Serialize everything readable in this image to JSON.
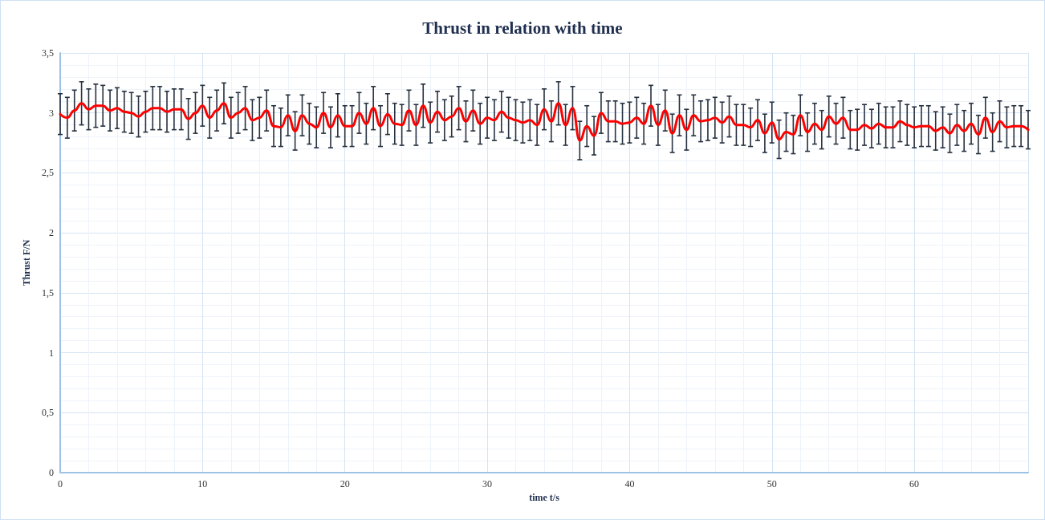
{
  "chart_data": {
    "type": "line",
    "title": "Thrust in relation with time",
    "xlabel": "time t/s",
    "ylabel": "Thrust F/N",
    "x": [
      0,
      0.5,
      1,
      1.5,
      2,
      2.5,
      3,
      3.5,
      4,
      4.5,
      5,
      5.5,
      6,
      6.5,
      7,
      7.5,
      8,
      8.5,
      9,
      9.5,
      10,
      10.5,
      11,
      11.5,
      12,
      12.5,
      13,
      13.5,
      14,
      14.5,
      15,
      15.5,
      16,
      16.5,
      17,
      17.5,
      18,
      18.5,
      19,
      19.5,
      20,
      20.5,
      21,
      21.5,
      22,
      22.5,
      23,
      23.5,
      24,
      24.5,
      25,
      25.5,
      26,
      26.5,
      27,
      27.5,
      28,
      28.5,
      29,
      29.5,
      30,
      30.5,
      31,
      31.5,
      32,
      32.5,
      33,
      33.5,
      34,
      34.5,
      35,
      35.5,
      36,
      36.5,
      37,
      37.5,
      38,
      38.5,
      39,
      39.5,
      40,
      40.5,
      41,
      41.5,
      42,
      42.5,
      43,
      43.5,
      44,
      44.5,
      45,
      45.5,
      46,
      46.5,
      47,
      47.5,
      48,
      48.5,
      49,
      49.5,
      50,
      50.5,
      51,
      51.5,
      52,
      52.5,
      53,
      53.5,
      54,
      54.5,
      55,
      55.5,
      56,
      56.5,
      57,
      57.5,
      58,
      58.5,
      59,
      59.5,
      60,
      60.5,
      61,
      61.5,
      62,
      62.5,
      63,
      63.5,
      64,
      64.5,
      65,
      65.5,
      66,
      66.5,
      67,
      67.5,
      68
    ],
    "series": [
      {
        "color": "#ff0000",
        "values": [
          2.99,
          2.96,
          3.02,
          3.08,
          3.03,
          3.06,
          3.06,
          3.02,
          3.04,
          3.01,
          3.0,
          2.97,
          3.01,
          3.04,
          3.04,
          3.01,
          3.03,
          3.03,
          2.95,
          3.0,
          3.06,
          2.96,
          3.02,
          3.08,
          2.96,
          3.0,
          3.04,
          2.94,
          2.96,
          3.02,
          2.89,
          2.88,
          2.98,
          2.85,
          2.98,
          2.91,
          2.88,
          3.0,
          2.88,
          2.98,
          2.89,
          2.89,
          3.0,
          2.91,
          3.04,
          2.89,
          2.99,
          2.91,
          2.9,
          3.02,
          2.9,
          3.06,
          2.92,
          3.01,
          2.94,
          2.97,
          3.04,
          2.93,
          3.02,
          2.91,
          2.96,
          2.94,
          3.01,
          2.96,
          2.94,
          2.92,
          2.94,
          2.9,
          3.03,
          2.93,
          3.08,
          2.9,
          3.04,
          2.77,
          2.89,
          2.81,
          3.0,
          2.93,
          2.93,
          2.91,
          2.92,
          2.96,
          2.91,
          3.06,
          2.9,
          3.02,
          2.83,
          2.98,
          2.86,
          2.98,
          2.93,
          2.94,
          2.96,
          2.92,
          2.97,
          2.9,
          2.9,
          2.88,
          2.94,
          2.83,
          2.92,
          2.78,
          2.84,
          2.82,
          2.98,
          2.84,
          2.91,
          2.86,
          2.97,
          2.91,
          2.96,
          2.86,
          2.86,
          2.9,
          2.87,
          2.91,
          2.88,
          2.88,
          2.93,
          2.9,
          2.88,
          2.89,
          2.89,
          2.85,
          2.88,
          2.83,
          2.9,
          2.85,
          2.91,
          2.82,
          2.96,
          2.84,
          2.93,
          2.88,
          2.89,
          2.89,
          2.86
        ],
        "errors": [
          0.17,
          0.17,
          0.17,
          0.18,
          0.17,
          0.18,
          0.17,
          0.17,
          0.17,
          0.17,
          0.17,
          0.17,
          0.17,
          0.18,
          0.18,
          0.17,
          0.17,
          0.17,
          0.17,
          0.17,
          0.17,
          0.17,
          0.17,
          0.17,
          0.17,
          0.17,
          0.18,
          0.17,
          0.17,
          0.17,
          0.17,
          0.16,
          0.17,
          0.16,
          0.17,
          0.17,
          0.17,
          0.17,
          0.17,
          0.18,
          0.17,
          0.17,
          0.17,
          0.17,
          0.18,
          0.17,
          0.17,
          0.17,
          0.17,
          0.17,
          0.17,
          0.18,
          0.17,
          0.17,
          0.17,
          0.17,
          0.18,
          0.17,
          0.17,
          0.17,
          0.17,
          0.17,
          0.17,
          0.17,
          0.17,
          0.17,
          0.17,
          0.17,
          0.17,
          0.17,
          0.18,
          0.17,
          0.18,
          0.16,
          0.17,
          0.16,
          0.17,
          0.17,
          0.17,
          0.17,
          0.17,
          0.17,
          0.17,
          0.17,
          0.17,
          0.17,
          0.16,
          0.17,
          0.17,
          0.17,
          0.17,
          0.17,
          0.17,
          0.17,
          0.17,
          0.17,
          0.17,
          0.16,
          0.17,
          0.16,
          0.17,
          0.16,
          0.16,
          0.16,
          0.17,
          0.16,
          0.17,
          0.16,
          0.17,
          0.17,
          0.17,
          0.16,
          0.17,
          0.17,
          0.16,
          0.17,
          0.17,
          0.17,
          0.17,
          0.17,
          0.17,
          0.17,
          0.17,
          0.16,
          0.17,
          0.16,
          0.17,
          0.17,
          0.17,
          0.16,
          0.17,
          0.16,
          0.17,
          0.17,
          0.17,
          0.17,
          0.16
        ]
      }
    ],
    "xlim": [
      0,
      68
    ],
    "xticks": [
      0,
      10,
      20,
      30,
      40,
      50,
      60
    ],
    "ylim": [
      0,
      3.5
    ],
    "yticks": [
      0,
      {
        "value": 0.5,
        "label": "0,5"
      },
      1,
      {
        "value": 1.5,
        "label": "1,5"
      },
      2,
      {
        "value": 2.5,
        "label": "2,5"
      },
      3,
      {
        "value": 3.5,
        "label": "3,5"
      }
    ],
    "grid": true,
    "marker": "none",
    "line_style": "solid"
  }
}
